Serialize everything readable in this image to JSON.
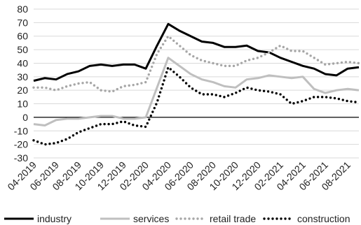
{
  "chart_data": {
    "type": "line",
    "title": "",
    "xlabel": "",
    "ylabel": "",
    "ylim": [
      -30,
      80
    ],
    "yticks": [
      -30,
      -20,
      -10,
      0,
      10,
      20,
      30,
      40,
      50,
      60,
      70,
      80
    ],
    "grid": "horizontal",
    "legend_position": "bottom",
    "x": [
      "04-2019",
      "05-2019",
      "06-2019",
      "07-2019",
      "08-2019",
      "09-2019",
      "10-2019",
      "11-2019",
      "12-2019",
      "01-2020",
      "02-2020",
      "03-2020",
      "04-2020",
      "05-2020",
      "06-2020",
      "07-2020",
      "08-2020",
      "09-2020",
      "10-2020",
      "11-2020",
      "12-2020",
      "01-2021",
      "02-2021",
      "03-2021",
      "04-2021",
      "05-2021",
      "06-2021",
      "07-2021",
      "08-2021",
      "09-2021"
    ],
    "x_tick_labels": [
      "04-2019",
      "06-2019",
      "08-2019",
      "10-2019",
      "12-2019",
      "02-2020",
      "04-2020",
      "06-2020",
      "08-2020",
      "10-2020",
      "12-2020",
      "02-2021",
      "04-2021",
      "06-2021",
      "08-2021"
    ],
    "series": [
      {
        "name": "industry",
        "color": "#000000",
        "style": "solid",
        "values": [
          27,
          29,
          28,
          32,
          34,
          38,
          39,
          38,
          39,
          39,
          36,
          53,
          69,
          64,
          60,
          56,
          55,
          52,
          52,
          53,
          49,
          48,
          44,
          41,
          38,
          36,
          32,
          31,
          36,
          37
        ]
      },
      {
        "name": "services",
        "color": "#bfbfbf",
        "style": "solid",
        "values": [
          -5,
          -6,
          -2,
          -1,
          -1,
          0,
          1,
          1,
          -1,
          -1,
          0,
          22,
          44,
          38,
          32,
          28,
          26,
          23,
          22,
          28,
          29,
          31,
          30,
          29,
          30,
          21,
          18,
          20,
          21,
          20
        ]
      },
      {
        "name": "retail trade",
        "color": "#a6a6a6",
        "style": "dotted",
        "values": [
          22,
          22,
          20,
          23,
          25,
          26,
          20,
          19,
          23,
          24,
          26,
          47,
          60,
          53,
          46,
          42,
          40,
          38,
          38,
          42,
          44,
          48,
          53,
          49,
          49,
          44,
          39,
          40,
          41,
          40
        ]
      },
      {
        "name": "construction",
        "color": "#000000",
        "style": "dotted",
        "values": [
          -17,
          -20,
          -19,
          -16,
          -11,
          -8,
          -5,
          -5,
          -3,
          -6,
          -7,
          11,
          37,
          30,
          22,
          17,
          17,
          15,
          18,
          22,
          20,
          19,
          17,
          10,
          12,
          15,
          15,
          14,
          12,
          11
        ]
      }
    ]
  }
}
